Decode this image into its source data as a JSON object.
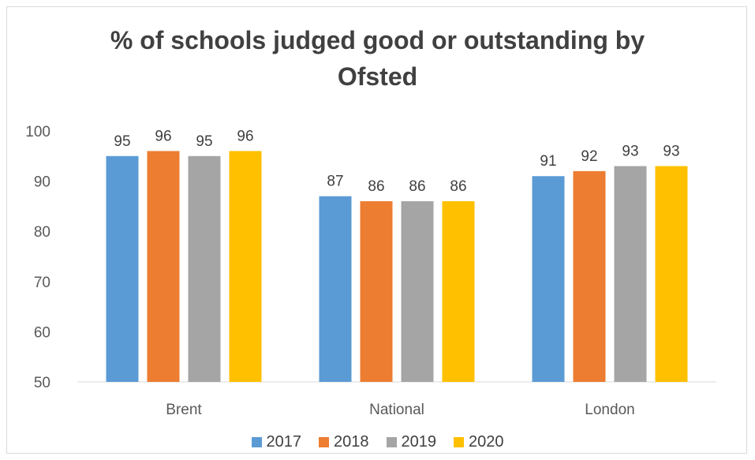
{
  "chart_data": {
    "type": "bar",
    "title": "% of schools judged good or outstanding by Ofsted",
    "categories": [
      "Brent",
      "National",
      "London"
    ],
    "series": [
      {
        "name": "2017",
        "color": "#5b9bd5",
        "values": [
          95,
          87,
          91
        ]
      },
      {
        "name": "2018",
        "color": "#ed7d31",
        "values": [
          96,
          86,
          92
        ]
      },
      {
        "name": "2019",
        "color": "#a5a5a5",
        "values": [
          95,
          86,
          93
        ]
      },
      {
        "name": "2020",
        "color": "#ffc000",
        "values": [
          96,
          86,
          93
        ]
      }
    ],
    "ylim": [
      50,
      100
    ],
    "yticks": [
      50,
      60,
      70,
      80,
      90,
      100
    ],
    "xlabel": "",
    "ylabel": "",
    "grid": false,
    "legend_position": "bottom"
  }
}
